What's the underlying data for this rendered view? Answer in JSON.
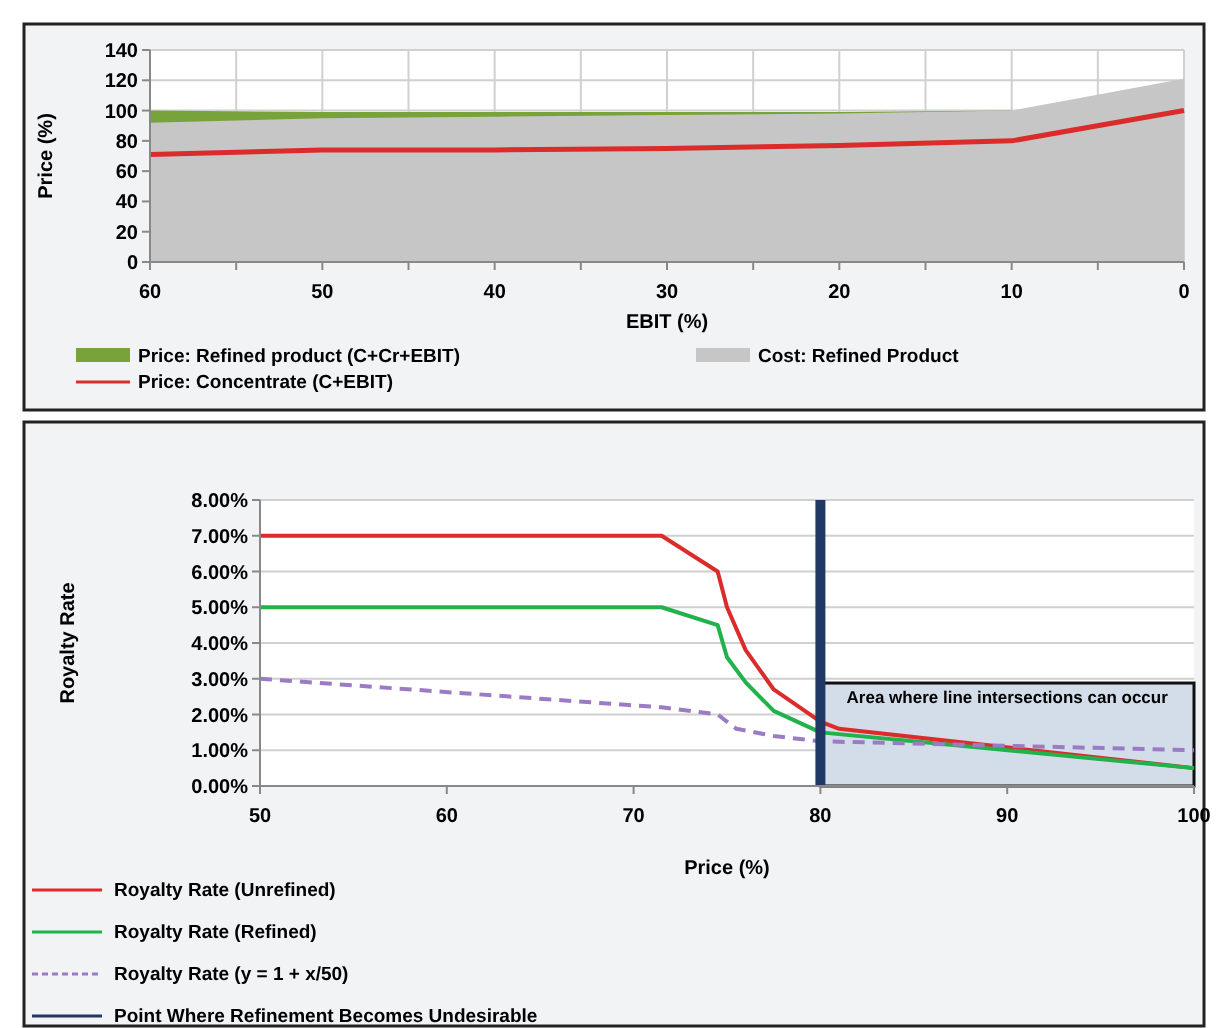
{
  "chart_data": [
    {
      "type": "area",
      "xlabel": "EBIT (%)",
      "ylabel": "Price (%)",
      "x": [
        60,
        50,
        40,
        30,
        20,
        10,
        0
      ],
      "xlim": [
        60,
        0
      ],
      "ylim": [
        0,
        140
      ],
      "xticks": [
        60,
        {
          "value": 55,
          "label": null
        },
        50,
        {
          "value": 45,
          "label": null
        },
        40,
        {
          "value": 35,
          "label": null
        },
        30,
        {
          "value": 25,
          "label": null
        },
        20,
        {
          "value": 15,
          "label": null
        },
        10,
        {
          "value": 5,
          "label": null
        },
        0
      ],
      "yticks": [
        0,
        20,
        40,
        60,
        80,
        100,
        120,
        140
      ],
      "grid": true,
      "legend": "bottom",
      "series": [
        {
          "name": "Price: Refined product (C+Cr+EBIT)",
          "color": "#77a33a",
          "values": [
            100,
            99,
            99,
            99,
            99,
            100,
            null
          ]
        },
        {
          "name": "Cost: Refined Product",
          "color": "#c6c6c6",
          "values": [
            92,
            95,
            96,
            97,
            98,
            100,
            121
          ]
        },
        {
          "name": "Price: Concentrate (C+EBIT)",
          "type": "line",
          "color": "#dc2b2b",
          "values": [
            71,
            74,
            74,
            75,
            77,
            80,
            100
          ]
        }
      ]
    },
    {
      "type": "line",
      "xlabel": "Price (%)",
      "ylabel": "Royalty Rate",
      "xlim": [
        50,
        100
      ],
      "ylim": [
        0,
        8
      ],
      "xticks": [
        50,
        60,
        70,
        80,
        90,
        100
      ],
      "yticks": [
        {
          "value": 0,
          "label": "0.00%"
        },
        {
          "value": 1,
          "label": "1.00%"
        },
        {
          "value": 2,
          "label": "2.00%"
        },
        {
          "value": 3,
          "label": "3.00%"
        },
        {
          "value": 4,
          "label": "4.00%"
        },
        {
          "value": 5,
          "label": "5.00%"
        },
        {
          "value": 6,
          "label": "6.00%"
        },
        {
          "value": 7,
          "label": "7.00%"
        },
        {
          "value": 8,
          "label": "8.00%"
        }
      ],
      "grid": "y",
      "legend": "bottom",
      "bands": [
        {
          "axis": "x",
          "from": 80,
          "to": 100,
          "label": "Area where line intersections can occur",
          "color": "#d3dde9"
        }
      ],
      "series": [
        {
          "name": "Royalty Rate (Unrefined)",
          "color": "#dc2b2b",
          "x": [
            50,
            71.5,
            74.5,
            75,
            76,
            77.5,
            80,
            81,
            100
          ],
          "values": [
            7,
            7,
            6,
            5,
            3.8,
            2.7,
            1.8,
            1.6,
            0.5
          ]
        },
        {
          "name": "Royalty Rate (Refined)",
          "color": "#22b24c",
          "x": [
            50,
            71.5,
            74.5,
            75,
            76,
            77.5,
            80,
            100
          ],
          "values": [
            5,
            5,
            4.5,
            3.6,
            2.9,
            2.1,
            1.5,
            0.5
          ]
        },
        {
          "name": "Royalty Rate (y = 1 + x/50)",
          "color": "#9b7cc4",
          "line_style": "dashed",
          "x": [
            50,
            71.5,
            74.5,
            75.5,
            77.5,
            80,
            100
          ],
          "values": [
            3,
            2.2,
            2,
            1.6,
            1.4,
            1.25,
            1
          ]
        },
        {
          "name": "Point Where Refinement Becomes Undesirable",
          "color": "#1f3864",
          "x": [
            80,
            80
          ],
          "values": [
            0,
            8
          ]
        }
      ]
    }
  ]
}
